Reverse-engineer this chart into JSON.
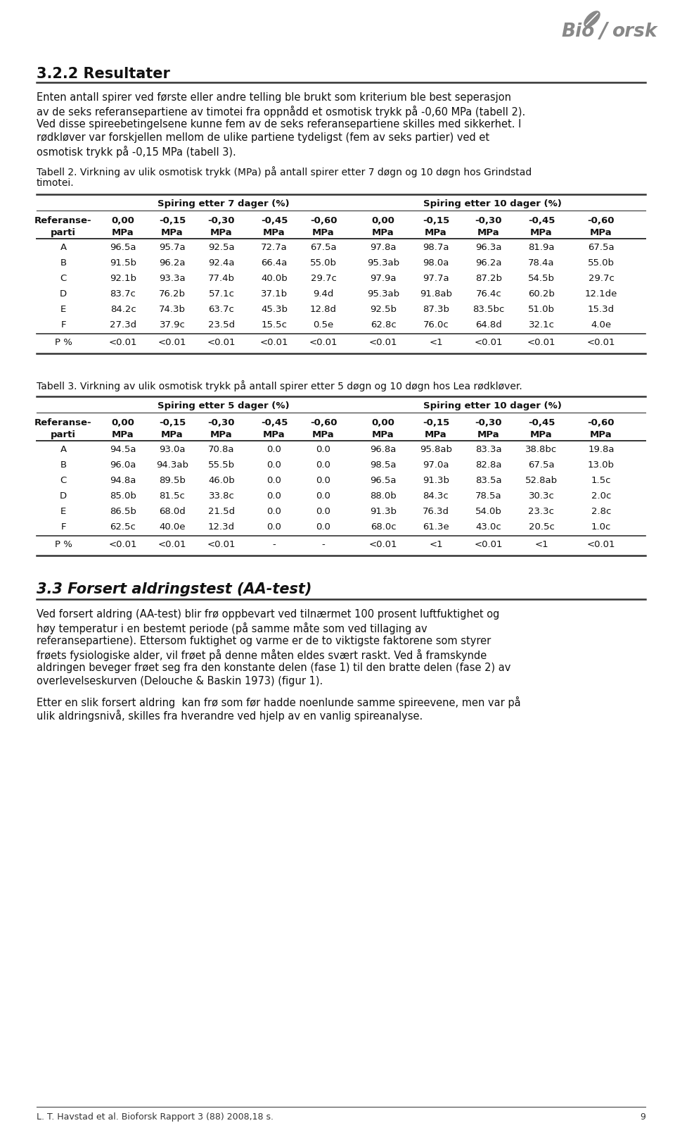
{
  "title_section": "3.2.2 Resultater",
  "intro_text_lines": [
    "Enten antall spirer ved første eller andre telling ble brukt som kriterium ble best seperasjon",
    "av de seks referansepartiene av timotei fra oppnådd et osmotisk trykk på -0,60 MPa (tabell 2).",
    "Ved disse spireebetingelsene kunne fem av de seks referansepartiene skilles med sikkerhet. I",
    "rødkløver var forskjellen mellom de ulike partiene tydeligst (fem av seks partier) ved et",
    "osmotisk trykk på -0,15 MPa (tabell 3)."
  ],
  "tabell2_caption_lines": [
    "Tabell 2. Virkning av ulik osmotisk trykk (MPa) på antall spirer etter 7 døgn og 10 døgn hos Grindstad",
    "timotei."
  ],
  "tabell2_header1": "Spiring etter 7 dager (%)",
  "tabell2_header2": "Spiring etter 10 dager (%)",
  "pressures": [
    "0,00",
    "-0,15",
    "-0,30",
    "-0,45",
    "-0,60"
  ],
  "tabell2_data": [
    [
      "A",
      "96.5a",
      "95.7a",
      "92.5a",
      "72.7a",
      "67.5a",
      "97.8a",
      "98.7a",
      "96.3a",
      "81.9a",
      "67.5a"
    ],
    [
      "B",
      "91.5b",
      "96.2a",
      "92.4a",
      "66.4a",
      "55.0b",
      "95.3ab",
      "98.0a",
      "96.2a",
      "78.4a",
      "55.0b"
    ],
    [
      "C",
      "92.1b",
      "93.3a",
      "77.4b",
      "40.0b",
      "29.7c",
      "97.9a",
      "97.7a",
      "87.2b",
      "54.5b",
      "29.7c"
    ],
    [
      "D",
      "83.7c",
      "76.2b",
      "57.1c",
      "37.1b",
      "9.4d",
      "95.3ab",
      "91.8ab",
      "76.4c",
      "60.2b",
      "12.1de"
    ],
    [
      "E",
      "84.2c",
      "74.3b",
      "63.7c",
      "45.3b",
      "12.8d",
      "92.5b",
      "87.3b",
      "83.5bc",
      "51.0b",
      "15.3d"
    ],
    [
      "F",
      "27.3d",
      "37.9c",
      "23.5d",
      "15.5c",
      "0.5e",
      "62.8c",
      "76.0c",
      "64.8d",
      "32.1c",
      "4.0e"
    ],
    [
      "P %",
      "<0.01",
      "<0.01",
      "<0.01",
      "<0.01",
      "<0.01",
      "<0.01",
      "<1",
      "<0.01",
      "<0.01",
      "<0.01"
    ]
  ],
  "tabell3_caption_lines": [
    "Tabell 3. Virkning av ulik osmotisk trykk på antall spirer etter 5 døgn og 10 døgn hos Lea rødkløver."
  ],
  "tabell3_header1": "Spiring etter 5 dager (%)",
  "tabell3_header2": "Spiring etter 10 dager (%)",
  "tabell3_data": [
    [
      "A",
      "94.5a",
      "93.0a",
      "70.8a",
      "0.0",
      "0.0",
      "96.8a",
      "95.8ab",
      "83.3a",
      "38.8bc",
      "19.8a"
    ],
    [
      "B",
      "96.0a",
      "94.3ab",
      "55.5b",
      "0.0",
      "0.0",
      "98.5a",
      "97.0a",
      "82.8a",
      "67.5a",
      "13.0b"
    ],
    [
      "C",
      "94.8a",
      "89.5b",
      "46.0b",
      "0.0",
      "0.0",
      "96.5a",
      "91.3b",
      "83.5a",
      "52.8ab",
      "1.5c"
    ],
    [
      "D",
      "85.0b",
      "81.5c",
      "33.8c",
      "0.0",
      "0.0",
      "88.0b",
      "84.3c",
      "78.5a",
      "30.3c",
      "2.0c"
    ],
    [
      "E",
      "86.5b",
      "68.0d",
      "21.5d",
      "0.0",
      "0.0",
      "91.3b",
      "76.3d",
      "54.0b",
      "23.3c",
      "2.8c"
    ],
    [
      "F",
      "62.5c",
      "40.0e",
      "12.3d",
      "0.0",
      "0.0",
      "68.0c",
      "61.3e",
      "43.0c",
      "20.5c",
      "1.0c"
    ],
    [
      "P %",
      "<0.01",
      "<0.01",
      "<0.01",
      "-",
      "-",
      "<0.01",
      "<1",
      "<0.01",
      "<1",
      "<0.01"
    ]
  ],
  "section33_title": "3.3 Forsert aldringstest (AA-test)",
  "section33_text_lines": [
    "Ved forsert aldring (AA-test) blir frø oppbevart ved tilnærmet 100 prosent luftfuktighet og",
    "høy temperatur i en bestemt periode (på samme måte som ved tillaging av",
    "referansepartiene). Ettersom fuktighet og varme er de to viktigste faktorene som styrer",
    "frøets fysiologiske alder, vil frøet på denne måten eldes svært raskt. Ved å framskynde",
    "aldringen beveger frøet seg fra den konstante delen (fase 1) til den bratte delen (fase 2) av",
    "overlevelseskurven (Delouche & Baskin 1973) (figur 1)."
  ],
  "section33_text2_lines": [
    "Etter en slik forsert aldring  kan frø som før hadde noenlunde samme spireevene, men var på",
    "ulik aldringsnivå, skilles fra hverandre ved hjelp av en vanlig spireanalyse."
  ],
  "footer": "L. T. Havstad et al. Bioforsk Rapport 3 (88) 2008,18 s.",
  "page_number": "9",
  "bg_color": "#ffffff"
}
